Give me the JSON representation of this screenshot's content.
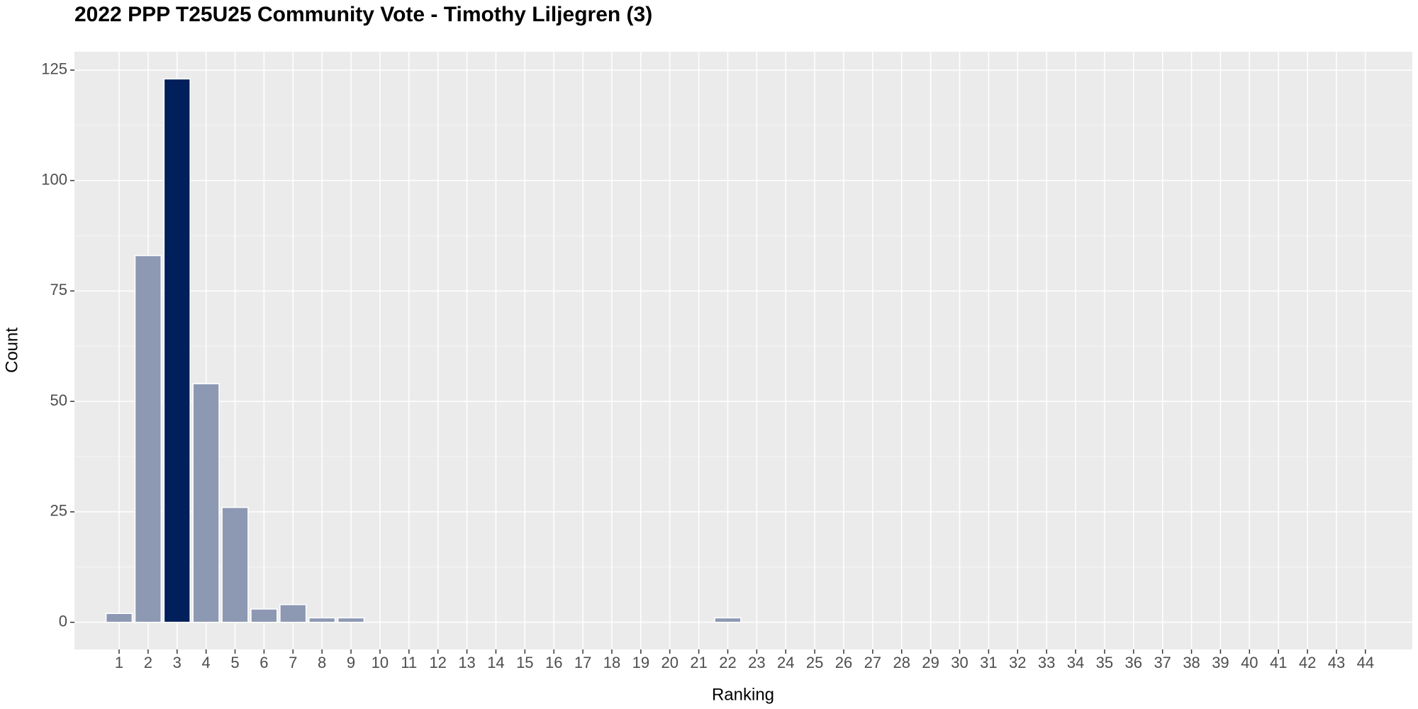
{
  "chart_data": {
    "type": "bar",
    "title": "2022 PPP T25U25 Community Vote - Timothy Liljegren (3)",
    "x_label": "Ranking",
    "y_label": "Count",
    "categories": [
      "1",
      "2",
      "3",
      "4",
      "5",
      "6",
      "7",
      "8",
      "9",
      "10",
      "11",
      "12",
      "13",
      "14",
      "15",
      "16",
      "17",
      "18",
      "19",
      "20",
      "21",
      "22",
      "23",
      "24",
      "25",
      "26",
      "27",
      "28",
      "29",
      "30",
      "31",
      "32",
      "33",
      "34",
      "35",
      "36",
      "37",
      "38",
      "39",
      "40",
      "41",
      "42",
      "43",
      "44"
    ],
    "values": [
      2,
      83,
      123,
      54,
      26,
      3,
      4,
      1,
      1,
      0,
      0,
      0,
      0,
      0,
      0,
      0,
      0,
      0,
      0,
      0,
      0,
      1,
      0,
      0,
      0,
      0,
      0,
      0,
      0,
      0,
      0,
      0,
      0,
      0,
      0,
      0,
      0,
      0,
      0,
      0,
      0,
      0,
      0,
      0
    ],
    "colors": [
      "#8d98b3",
      "#8d98b3",
      "#001f5b",
      "#8d98b3",
      "#8d98b3",
      "#8d98b3",
      "#8d98b3",
      "#8d98b3",
      "#8d98b3",
      "#8d98b3",
      "#8d98b3",
      "#8d98b3",
      "#8d98b3",
      "#8d98b3",
      "#8d98b3",
      "#8d98b3",
      "#8d98b3",
      "#8d98b3",
      "#8d98b3",
      "#8d98b3",
      "#8d98b3",
      "#8d98b3",
      "#8d98b3",
      "#8d98b3",
      "#8d98b3",
      "#8d98b3",
      "#8d98b3",
      "#8d98b3",
      "#8d98b3",
      "#8d98b3",
      "#8d98b3",
      "#8d98b3",
      "#8d98b3",
      "#8d98b3",
      "#8d98b3",
      "#8d98b3",
      "#8d98b3",
      "#8d98b3",
      "#8d98b3",
      "#8d98b3",
      "#8d98b3",
      "#8d98b3",
      "#8d98b3",
      "#8d98b3"
    ],
    "ylim": [
      -6.15,
      129.15
    ],
    "yticks": [
      0,
      25,
      50,
      75,
      100,
      125
    ],
    "grid": true
  }
}
